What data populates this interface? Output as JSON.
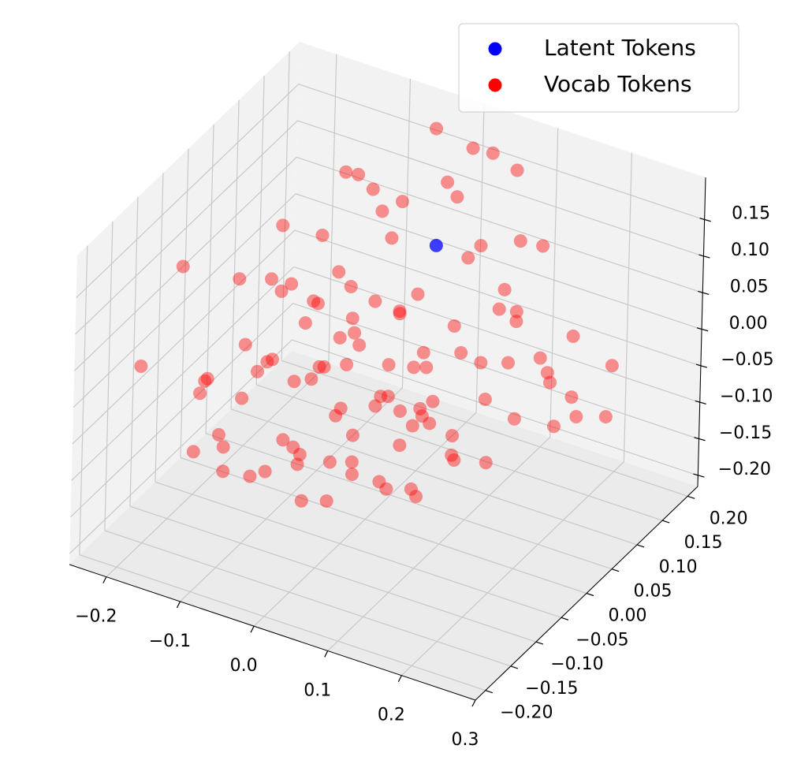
{
  "chart_data": {
    "type": "scatter3d",
    "xlim": [
      -0.25,
      0.3
    ],
    "ylim": [
      -0.22,
      0.22
    ],
    "zlim": [
      -0.215,
      0.208
    ],
    "xticks": [
      {
        "value": -0.2,
        "label": "−0.2"
      },
      {
        "value": -0.1,
        "label": "−0.1"
      },
      {
        "value": 0,
        "label": "0.0"
      },
      0.1,
      0.2,
      0.3
    ],
    "yticks": [
      {
        "value": -0.2,
        "label": "−0.20"
      },
      {
        "value": -0.15,
        "label": "−0.15"
      },
      {
        "value": -0.1,
        "label": "−0.10"
      },
      {
        "value": -0.05,
        "label": "−0.05"
      },
      {
        "value": 0,
        "label": "0.00"
      },
      0.05,
      {
        "value": 0.1,
        "label": "0.10"
      },
      0.15,
      {
        "value": 0.2,
        "label": "0.20"
      }
    ],
    "zticks": [
      {
        "value": -0.2,
        "label": "−0.20"
      },
      {
        "value": -0.15,
        "label": "−0.15"
      },
      {
        "value": -0.1,
        "label": "−0.10"
      },
      {
        "value": -0.05,
        "label": "−0.05"
      },
      {
        "value": 0,
        "label": "0.00"
      },
      0.05,
      {
        "value": 0.1,
        "label": "0.10"
      },
      0.15
    ],
    "grid": true,
    "legend": "upper right",
    "series": [
      {
        "name": "Latent Tokens",
        "color": "#0000ff",
        "x": [
          0.02
        ],
        "y": [
          0.1
        ],
        "z": [
          0.1
        ]
      },
      {
        "name": "Vocab Tokens",
        "color": "#ff0000",
        "x": [
          -0.18,
          -0.15,
          -0.12,
          -0.1,
          -0.08,
          -0.05,
          -0.03,
          0.0,
          0.02,
          -0.16,
          -0.14,
          -0.11,
          -0.09,
          -0.07,
          -0.04,
          -0.02,
          0.01,
          -0.19,
          -0.17,
          -0.13,
          -0.1,
          -0.06,
          -0.01,
          0.03,
          -0.2,
          -0.15,
          -0.12,
          -0.08,
          -0.05,
          0.0,
          -0.22,
          -0.14,
          -0.09,
          -0.06,
          -0.11,
          -0.07,
          -0.03,
          -0.16,
          -0.13,
          -0.04,
          0.04,
          0.05,
          -0.21,
          -0.18,
          -0.1,
          -0.02,
          0.02,
          -0.08,
          -0.12,
          -0.06,
          0.12,
          0.15,
          0.18,
          0.2,
          0.22,
          0.25,
          0.28,
          0.14,
          0.17,
          0.21,
          0.24,
          0.27,
          0.1,
          0.13,
          0.16,
          0.19,
          0.23,
          0.26,
          0.29,
          0.11,
          0.08,
          0.09,
          0.2,
          0.3,
          0.28,
          0.06,
          0.15,
          0.22,
          0.07,
          0.12,
          0.1,
          0.05,
          0.15,
          0.08,
          0.18,
          0.02,
          0.12,
          -0.06,
          -0.02,
          0.02,
          0.05,
          -0.1,
          0.0,
          0.04,
          -0.08,
          -0.14,
          0.08,
          0.1,
          -0.04,
          0.06,
          -0.12,
          0.12,
          -0.2,
          0.15,
          0.03,
          -0.17,
          -0.05,
          -0.22,
          -0.24
        ],
        "y": [
          0.02,
          -0.03,
          0.05,
          0.0,
          -0.05,
          0.03,
          -0.02,
          0.04,
          -0.06,
          0.08,
          -0.08,
          0.1,
          -0.1,
          0.07,
          -0.08,
          0.09,
          0.01,
          -0.04,
          0.05,
          0.0,
          0.06,
          -0.01,
          -0.04,
          0.02,
          0.1,
          0.12,
          -0.12,
          0.13,
          -0.13,
          0.11,
          0.0,
          0.03,
          0.02,
          0.05,
          -0.06,
          -0.03,
          0.06,
          -0.1,
          0.08,
          0.0,
          -0.02,
          0.05,
          0.05,
          -0.08,
          -0.14,
          -0.1,
          0.08,
          0.1,
          0.15,
          0.15,
          -0.05,
          0.0,
          -0.1,
          -0.02,
          0.03,
          -0.08,
          0.0,
          -0.12,
          0.04,
          -0.14,
          0.05,
          -0.04,
          0.02,
          -0.08,
          -0.15,
          0.06,
          -0.11,
          0.02,
          -0.06,
          -0.1,
          -0.03,
          0.05,
          -0.06,
          0.04,
          0.06,
          -0.12,
          0.07,
          -0.16,
          0.0,
          0.09,
          -0.18,
          -0.15,
          -0.2,
          -0.2,
          -0.17,
          -0.18,
          -0.14,
          0.15,
          0.18,
          0.14,
          0.12,
          0.17,
          0.2,
          0.18,
          0.12,
          0.18,
          0.1,
          0.15,
          0.1,
          0.2,
          0.08,
          0.08,
          0.12,
          0.12,
          0.05,
          0.2,
          0.2,
          -0.05,
          -0.1
        ],
        "z": [
          -0.05,
          -0.08,
          -0.02,
          -0.06,
          -0.1,
          -0.04,
          -0.07,
          -0.03,
          -0.09,
          0.0,
          -0.11,
          0.02,
          -0.12,
          -0.01,
          -0.1,
          0.0,
          -0.05,
          -0.06,
          -0.09,
          -0.04,
          -0.08,
          -0.02,
          -0.04,
          -0.07,
          -0.02,
          -0.05,
          -0.06,
          -0.03,
          -0.08,
          -0.06,
          -0.1,
          0.03,
          0.04,
          0.05,
          -0.01,
          -0.13,
          -0.11,
          -0.03,
          -0.12,
          0.02,
          -0.02,
          -0.1,
          0.01,
          -0.13,
          -0.09,
          -0.13,
          -0.12,
          -0.07,
          -0.1,
          -0.05,
          0.02,
          0.05,
          0.0,
          0.08,
          0.04,
          0.06,
          0.02,
          0.04,
          0.1,
          0.03,
          0.0,
          0.09,
          0.07,
          0.09,
          -0.02,
          0.03,
          0.1,
          0.11,
          0.05,
          -0.01,
          0.04,
          0.01,
          -0.03,
          0.07,
          -0.02,
          0.0,
          0.06,
          0.08,
          -0.04,
          0.08,
          0.0,
          -0.02,
          0.02,
          -0.03,
          -0.01,
          0.01,
          -0.04,
          0.1,
          0.12,
          0.14,
          0.08,
          0.06,
          0.16,
          0.18,
          0.13,
          0.09,
          0.12,
          0.1,
          0.09,
          0.15,
          0.08,
          0.06,
          0.04,
          0.13,
          0.07,
          0.07,
          0.17,
          0.09,
          -0.02
        ]
      }
    ]
  }
}
